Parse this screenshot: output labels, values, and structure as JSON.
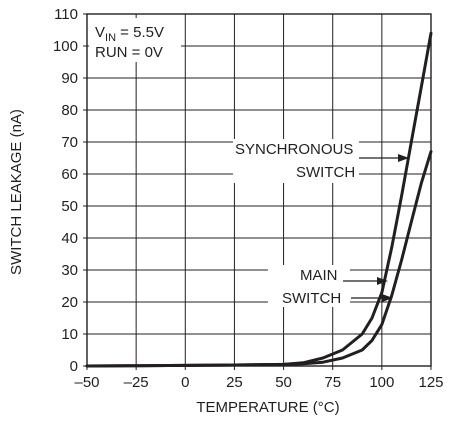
{
  "chart_data": {
    "type": "line",
    "xlabel": "TEMPERATURE (°C)",
    "ylabel": "SWITCH LEAKAGE (nA)",
    "xlim": [
      -50,
      125
    ],
    "ylim": [
      0,
      110
    ],
    "x_ticks": [
      -50,
      -25,
      0,
      25,
      50,
      75,
      100,
      125
    ],
    "y_ticks": [
      0,
      10,
      20,
      30,
      40,
      50,
      60,
      70,
      80,
      90,
      100,
      110
    ],
    "x_tick_labels": [
      "–50",
      "–25",
      "0",
      "25",
      "50",
      "75",
      "100",
      "125"
    ],
    "y_tick_labels": [
      "0",
      "10",
      "20",
      "30",
      "40",
      "50",
      "60",
      "70",
      "80",
      "90",
      "100",
      "110"
    ],
    "grid": true,
    "conditions": {
      "vin_prefix": "V",
      "vin_sub": "IN",
      "vin_suffix": " = 5.5V",
      "run": "RUN = 0V"
    },
    "series": [
      {
        "name": "SYNCHRONOUS SWITCH",
        "label_lines": [
          "SYNCHRONOUS",
          "SWITCH"
        ],
        "color": "#231f20",
        "x": [
          -50,
          -25,
          0,
          25,
          50,
          60,
          70,
          80,
          90,
          95,
          100,
          105,
          110,
          115,
          120,
          125
        ],
        "values": [
          0,
          0.1,
          0.2,
          0.3,
          0.5,
          1,
          2.5,
          5,
          10,
          15,
          23,
          37,
          53,
          70,
          87,
          104
        ]
      },
      {
        "name": "MAIN SWITCH",
        "label_lines": [
          "MAIN",
          "SWITCH"
        ],
        "color": "#231f20",
        "x": [
          -50,
          -25,
          0,
          25,
          50,
          60,
          70,
          80,
          90,
          95,
          100,
          105,
          110,
          115,
          120,
          125
        ],
        "values": [
          0,
          0.1,
          0.2,
          0.3,
          0.5,
          0.7,
          1.2,
          2.5,
          5,
          8,
          13,
          22,
          33,
          45,
          57,
          67
        ]
      }
    ]
  }
}
